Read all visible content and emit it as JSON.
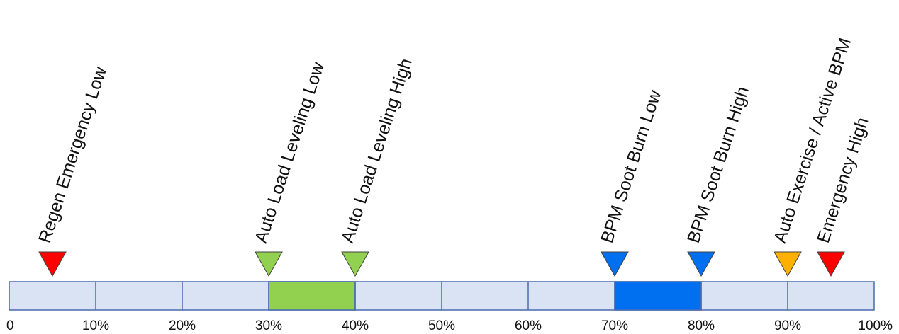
{
  "scale": {
    "min": 0,
    "max": 100,
    "tick_labels": [
      "0",
      "10%",
      "20%",
      "30%",
      "40%",
      "50%",
      "60%",
      "70%",
      "80%",
      "90%",
      "100%"
    ],
    "tick_values": [
      0,
      10,
      20,
      30,
      40,
      50,
      60,
      70,
      80,
      90,
      100
    ]
  },
  "bands": [
    {
      "start": 30,
      "end": 40,
      "color": "#92d050"
    },
    {
      "start": 70,
      "end": 80,
      "color": "#0070f0"
    }
  ],
  "markers": [
    {
      "label": "Regen Emergency Low",
      "value": 5,
      "color": "#ff0000"
    },
    {
      "label": "Auto Load Leveling Low",
      "value": 30,
      "color": "#92d050"
    },
    {
      "label": "Auto Load Leveling High",
      "value": 40,
      "color": "#92d050"
    },
    {
      "label": "BPM Soot Burn Low",
      "value": 70,
      "color": "#0070f0"
    },
    {
      "label": "BPM Soot Burn High",
      "value": 80,
      "color": "#0070f0"
    },
    {
      "label": "Auto Exercise / Active BPM",
      "value": 90,
      "color": "#ffb000"
    },
    {
      "label": "Emergency High",
      "value": 95,
      "color": "#ff0000"
    }
  ],
  "colors": {
    "bar_fill": "#dae3f3",
    "bar_border": "#4a6bb0",
    "marker_border": "#404040"
  }
}
